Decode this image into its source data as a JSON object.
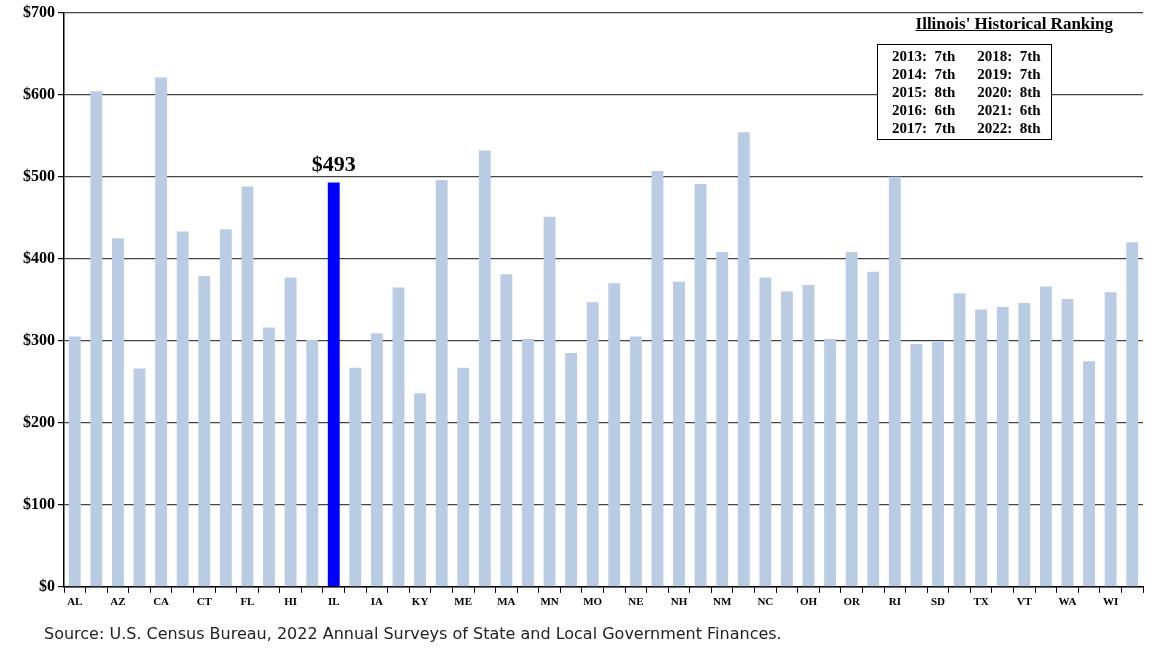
{
  "chart_data": {
    "type": "bar",
    "categories": [
      "AL",
      null,
      "AZ",
      null,
      "CA",
      null,
      "CT",
      null,
      "FL",
      null,
      "HI",
      null,
      "IL",
      null,
      "IA",
      null,
      "KY",
      null,
      "ME",
      null,
      "MA",
      null,
      "MN",
      null,
      "MO",
      null,
      "NE",
      null,
      "NH",
      null,
      "NM",
      null,
      "NC",
      null,
      "OH",
      null,
      "OR",
      null,
      "RI",
      null,
      "SD",
      null,
      "TX",
      null,
      "VT",
      null,
      "WA",
      null,
      "WI",
      null
    ],
    "values": [
      305,
      604,
      425,
      266,
      621,
      433,
      379,
      436,
      488,
      316,
      377,
      301,
      493,
      267,
      309,
      365,
      236,
      496,
      267,
      532,
      381,
      302,
      451,
      285,
      347,
      370,
      305,
      507,
      372,
      491,
      408,
      554,
      377,
      360,
      368,
      302,
      408,
      384,
      500,
      296,
      299,
      358,
      338,
      341,
      346,
      366,
      351,
      275,
      359,
      420
    ],
    "colors": [
      "#b9cce4",
      "#b9cce4",
      "#b9cce4",
      "#b9cce4",
      "#b9cce4",
      "#b9cce4",
      "#b9cce4",
      "#b9cce4",
      "#b9cce4",
      "#b9cce4",
      "#b9cce4",
      "#b9cce4",
      "#0000ff",
      "#b9cce4",
      "#b9cce4",
      "#b9cce4",
      "#b9cce4",
      "#b9cce4",
      "#b9cce4",
      "#b9cce4",
      "#b9cce4",
      "#b9cce4",
      "#b9cce4",
      "#b9cce4",
      "#b9cce4",
      "#b9cce4",
      "#b9cce4",
      "#b9cce4",
      "#b9cce4",
      "#b9cce4",
      "#b9cce4",
      "#b9cce4",
      "#b9cce4",
      "#b9cce4",
      "#b9cce4",
      "#b9cce4",
      "#b9cce4",
      "#b9cce4",
      "#b9cce4",
      "#b9cce4",
      "#b9cce4",
      "#b9cce4",
      "#b9cce4",
      "#b9cce4",
      "#b9cce4",
      "#b9cce4",
      "#b9cce4",
      "#b9cce4",
      "#b9cce4",
      "#b9cce4"
    ],
    "value_labels": [
      null,
      null,
      null,
      null,
      null,
      null,
      null,
      null,
      null,
      null,
      null,
      null,
      "$493",
      null,
      null,
      null,
      null,
      null,
      null,
      null,
      null,
      null,
      null,
      null,
      null,
      null,
      null,
      null,
      null,
      null,
      null,
      null,
      null,
      null,
      null,
      null,
      null,
      null,
      null,
      null,
      null,
      null,
      null,
      null,
      null,
      null,
      null,
      null,
      null,
      null
    ],
    "ylim": [
      0,
      700
    ],
    "yticks": [
      {
        "value": 0,
        "label": "$0"
      },
      {
        "value": 100,
        "label": "$100"
      },
      {
        "value": 200,
        "label": "$200"
      },
      {
        "value": 300,
        "label": "$300"
      },
      {
        "value": 400,
        "label": "$400"
      },
      {
        "value": 500,
        "label": "$500"
      },
      {
        "value": 600,
        "label": "$600"
      },
      {
        "value": 700,
        "label": "$700"
      }
    ],
    "grid": "y",
    "legend": false,
    "annotations": [
      "Illinois' Historical Ranking",
      "2013:  7th",
      "2014:  7th",
      "2015:  8th",
      "2016:  6th",
      "2017:  7th",
      "2018:  7th",
      "2019:  7th",
      "2020:  8th",
      "2021:  6th",
      "2022:  8th",
      "Source: U.S. Census Bureau,  2022 Annual Surveys of State and Local Government Finances."
    ]
  }
}
